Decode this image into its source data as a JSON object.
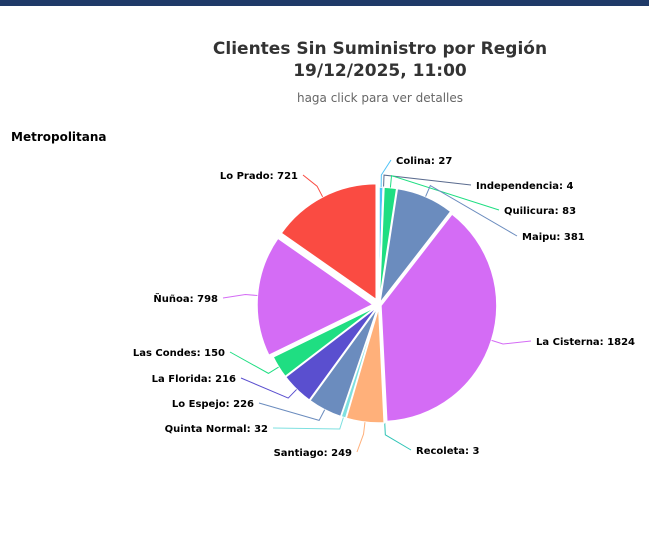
{
  "chart_data": {
    "type": "pie",
    "title_line1": "Clientes Sin Suministro por Región",
    "title_line2": "19/12/2025, 11:00",
    "subtitle": "haga click para ver detalles",
    "region_label": "Metropolitana",
    "slices": [
      {
        "name": "Colina",
        "value": 27,
        "label": "Colina: 27",
        "color": "#4fc3f7"
      },
      {
        "name": "Independencia",
        "value": 4,
        "label": "Independencia: 4",
        "color": "#5b6c8f"
      },
      {
        "name": "Quilicura",
        "value": 83,
        "label": "Quilicura: 83",
        "color": "#1fde82"
      },
      {
        "name": "Maipu",
        "value": 381,
        "label": "Maipu: 381",
        "color": "#6b8cbe"
      },
      {
        "name": "La Cisterna",
        "value": 1824,
        "label": "La Cisterna: 1824",
        "color": "#d46cf5"
      },
      {
        "name": "Recoleta",
        "value": 3,
        "label": "Recoleta: 3",
        "color": "#2ec4b6"
      },
      {
        "name": "Santiago",
        "value": 249,
        "label": "Santiago: 249",
        "color": "#ffb07a"
      },
      {
        "name": "Quinta Normal",
        "value": 32,
        "label": "Quinta Normal: 32",
        "color": "#7ee0e0"
      },
      {
        "name": "Lo Espejo",
        "value": 226,
        "label": "Lo Espejo: 226",
        "color": "#6b8cbe"
      },
      {
        "name": "La Florida",
        "value": 216,
        "label": "La Florida: 216",
        "color": "#5a4fcf"
      },
      {
        "name": "Las Condes",
        "value": 150,
        "label": "Las Condes: 150",
        "color": "#1fde82"
      },
      {
        "name": "Ñuñoa",
        "value": 798,
        "label": "Ñuñoa: 798",
        "color": "#d46cf5"
      },
      {
        "name": "Lo Prado",
        "value": 721,
        "label": "Lo Prado: 721",
        "color": "#fa4b42"
      }
    ]
  }
}
